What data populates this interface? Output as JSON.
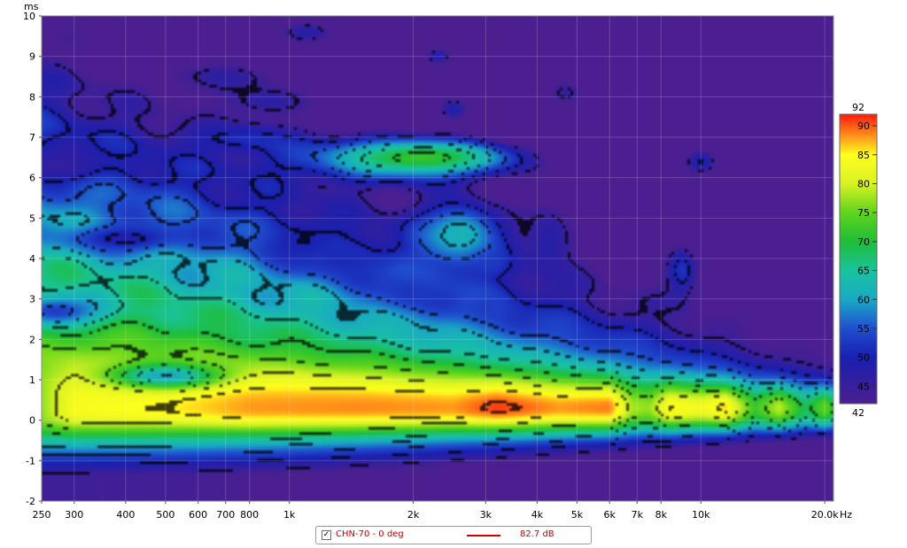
{
  "chart_data": {
    "type": "heatmap",
    "x_scale": "log",
    "xlim": [
      250,
      21000
    ],
    "ylim": [
      -2,
      10
    ],
    "y_unit": "ms",
    "x_unit": "Hz",
    "x_ticks": [
      {
        "value": 250,
        "label": "250"
      },
      {
        "value": 300,
        "label": "300"
      },
      {
        "value": 400,
        "label": "400"
      },
      {
        "value": 500,
        "label": "500"
      },
      {
        "value": 600,
        "label": "600"
      },
      {
        "value": 700,
        "label": "700"
      },
      {
        "value": 800,
        "label": "800"
      },
      {
        "value": 1000,
        "label": "1k"
      },
      {
        "value": 2000,
        "label": "2k"
      },
      {
        "value": 3000,
        "label": "3k"
      },
      {
        "value": 4000,
        "label": "4k"
      },
      {
        "value": 5000,
        "label": "5k"
      },
      {
        "value": 6000,
        "label": "6k"
      },
      {
        "value": 7000,
        "label": "7k"
      },
      {
        "value": 8000,
        "label": "8k"
      },
      {
        "value": 10000,
        "label": "10k"
      },
      {
        "value": 20000,
        "label": "20.0k"
      }
    ],
    "y_ticks": [
      -2,
      -1,
      0,
      1,
      2,
      3,
      4,
      5,
      6,
      7,
      8,
      9,
      10
    ],
    "colorbar": {
      "min": 42,
      "max": 92,
      "ticks": [
        45,
        50,
        55,
        60,
        65,
        70,
        75,
        80,
        85,
        90
      ],
      "stops": [
        {
          "value": 42,
          "color": "#4b1f8f"
        },
        {
          "value": 50,
          "color": "#1a1fb0"
        },
        {
          "value": 55,
          "color": "#1f4fcf"
        },
        {
          "value": 60,
          "color": "#19a9c4"
        },
        {
          "value": 65,
          "color": "#19c39e"
        },
        {
          "value": 70,
          "color": "#1ebd38"
        },
        {
          "value": 75,
          "color": "#5fd41c"
        },
        {
          "value": 80,
          "color": "#d8f224"
        },
        {
          "value": 85,
          "color": "#ffff1c"
        },
        {
          "value": 88,
          "color": "#ff9a1a"
        },
        {
          "value": 92,
          "color": "#ff1a0f"
        }
      ]
    },
    "features": [
      {
        "freq": 270,
        "time": 6.3,
        "level": 46,
        "sx": 0.14,
        "sy": 0.5
      },
      {
        "freq": 400,
        "time": 4.5,
        "level": 49,
        "sx": 0.15,
        "sy": 0.35
      },
      {
        "freq": 270,
        "time": 2.7,
        "level": 53,
        "sx": 0.12,
        "sy": 0.4
      },
      {
        "freq": 500,
        "time": 1.1,
        "level": 60,
        "sx": 0.13,
        "sy": 0.3
      },
      {
        "freq": 700,
        "time": 8.5,
        "level": 47,
        "sx": 0.16,
        "sy": 0.45
      },
      {
        "freq": 900,
        "time": 7.9,
        "level": 47,
        "sx": 0.14,
        "sy": 0.5
      },
      {
        "freq": 750,
        "time": 7.0,
        "level": 50,
        "sx": 0.16,
        "sy": 0.4
      },
      {
        "freq": 1100,
        "time": 9.6,
        "level": 48,
        "sx": 0.12,
        "sy": 0.5
      },
      {
        "freq": 1100,
        "time": 4.4,
        "level": 50,
        "sx": 0.11,
        "sy": 0.5
      },
      {
        "freq": 1350,
        "time": 4.0,
        "level": 51,
        "sx": 0.1,
        "sy": 0.45
      },
      {
        "freq": 2000,
        "time": 3.2,
        "level": 52,
        "sx": 0.1,
        "sy": 0.5
      },
      {
        "freq": 2100,
        "time": 6.5,
        "level": 72,
        "sx": 0.3,
        "sy": 0.6
      },
      {
        "freq": 2300,
        "time": 9.0,
        "level": 49,
        "sx": 0.06,
        "sy": 0.4
      },
      {
        "freq": 2500,
        "time": 7.7,
        "level": 49,
        "sx": 0.06,
        "sy": 0.45
      },
      {
        "freq": 2600,
        "time": 4.6,
        "level": 62,
        "sx": 0.12,
        "sy": 0.9
      },
      {
        "freq": 3100,
        "time": 3.9,
        "level": 53,
        "sx": 0.05,
        "sy": 0.3
      },
      {
        "freq": 3000,
        "time": 2.8,
        "level": 53,
        "sx": 0.05,
        "sy": 0.4
      },
      {
        "freq": 4300,
        "time": 4.4,
        "level": 48,
        "sx": 0.08,
        "sy": 1.4
      },
      {
        "freq": 4700,
        "time": 8.1,
        "level": 46,
        "sx": 0.1,
        "sy": 0.7
      },
      {
        "freq": 10000,
        "time": 6.4,
        "level": 50,
        "sx": 0.08,
        "sy": 0.6
      },
      {
        "freq": 9000,
        "time": 3.7,
        "level": 52,
        "sx": 0.05,
        "sy": 0.8
      }
    ],
    "ridge": [
      {
        "freq": 250,
        "peak": 77
      },
      {
        "freq": 300,
        "peak": 84
      },
      {
        "freq": 500,
        "peak": 85
      },
      {
        "freq": 800,
        "peak": 88
      },
      {
        "freq": 1500,
        "peak": 88.5
      },
      {
        "freq": 2500,
        "peak": 88
      },
      {
        "freq": 3200,
        "peak": 91
      },
      {
        "freq": 4500,
        "peak": 88
      },
      {
        "freq": 6000,
        "peak": 89
      },
      {
        "freq": 6800,
        "peak": 78
      },
      {
        "freq": 7500,
        "peak": 77
      },
      {
        "freq": 8400,
        "peak": 85
      },
      {
        "freq": 10000,
        "peak": 83
      },
      {
        "freq": 11500,
        "peak": 86
      },
      {
        "freq": 13500,
        "peak": 72
      },
      {
        "freq": 15500,
        "peak": 79
      },
      {
        "freq": 18000,
        "peak": 68
      },
      {
        "freq": 20000,
        "peak": 75
      },
      {
        "freq": 21000,
        "peak": 70
      }
    ]
  },
  "legend": {
    "checked": true,
    "check_mark": "✓",
    "name": "CHN-70 - 0 deg",
    "value": "82.7 dB",
    "line_color": "#cc0000"
  }
}
